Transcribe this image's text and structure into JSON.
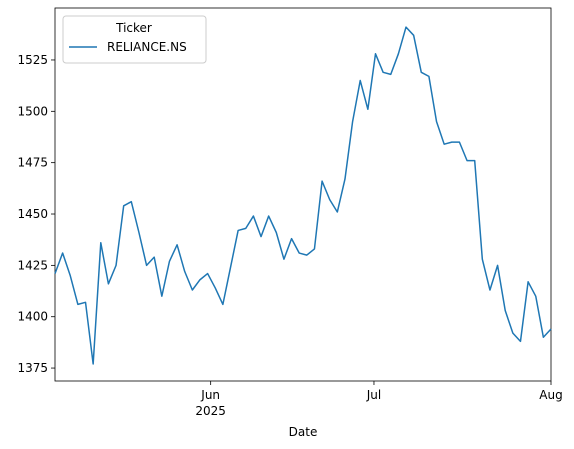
{
  "chart_data": {
    "type": "line",
    "x_label": "Date",
    "xlim": [
      0,
      65
    ],
    "xticks": [
      {
        "value": 20.4,
        "label": "Jun"
      },
      {
        "value": 41.8,
        "label": "Jul"
      },
      {
        "value": 65,
        "label": "Aug"
      }
    ],
    "xtick_sublabel": "2025",
    "ylim": [
      1368.7,
      1550.3
    ],
    "yticks": [
      1375,
      1400,
      1425,
      1450,
      1475,
      1500,
      1525
    ],
    "legend_title": "Ticker",
    "legend_position": "upper left",
    "series": [
      {
        "name": "RELIANCE.NS",
        "color": "#1f77b4",
        "values": [
          1421,
          1431,
          1420,
          1406,
          1407,
          1377,
          1436,
          1416,
          1425,
          1454,
          1456,
          1441,
          1425,
          1429,
          1410,
          1427,
          1435,
          1422,
          1413,
          1418,
          1421,
          1414,
          1406,
          1424,
          1442,
          1443,
          1449,
          1439,
          1449,
          1441,
          1428,
          1438,
          1431,
          1430,
          1433,
          1466,
          1457,
          1451,
          1467,
          1495,
          1515,
          1501,
          1528,
          1519,
          1518,
          1528,
          1541,
          1537,
          1519,
          1517,
          1495,
          1484,
          1485,
          1485,
          1476,
          1476,
          1428,
          1413,
          1425,
          1403,
          1392,
          1388,
          1417,
          1410,
          1390,
          1394
        ]
      }
    ]
  }
}
